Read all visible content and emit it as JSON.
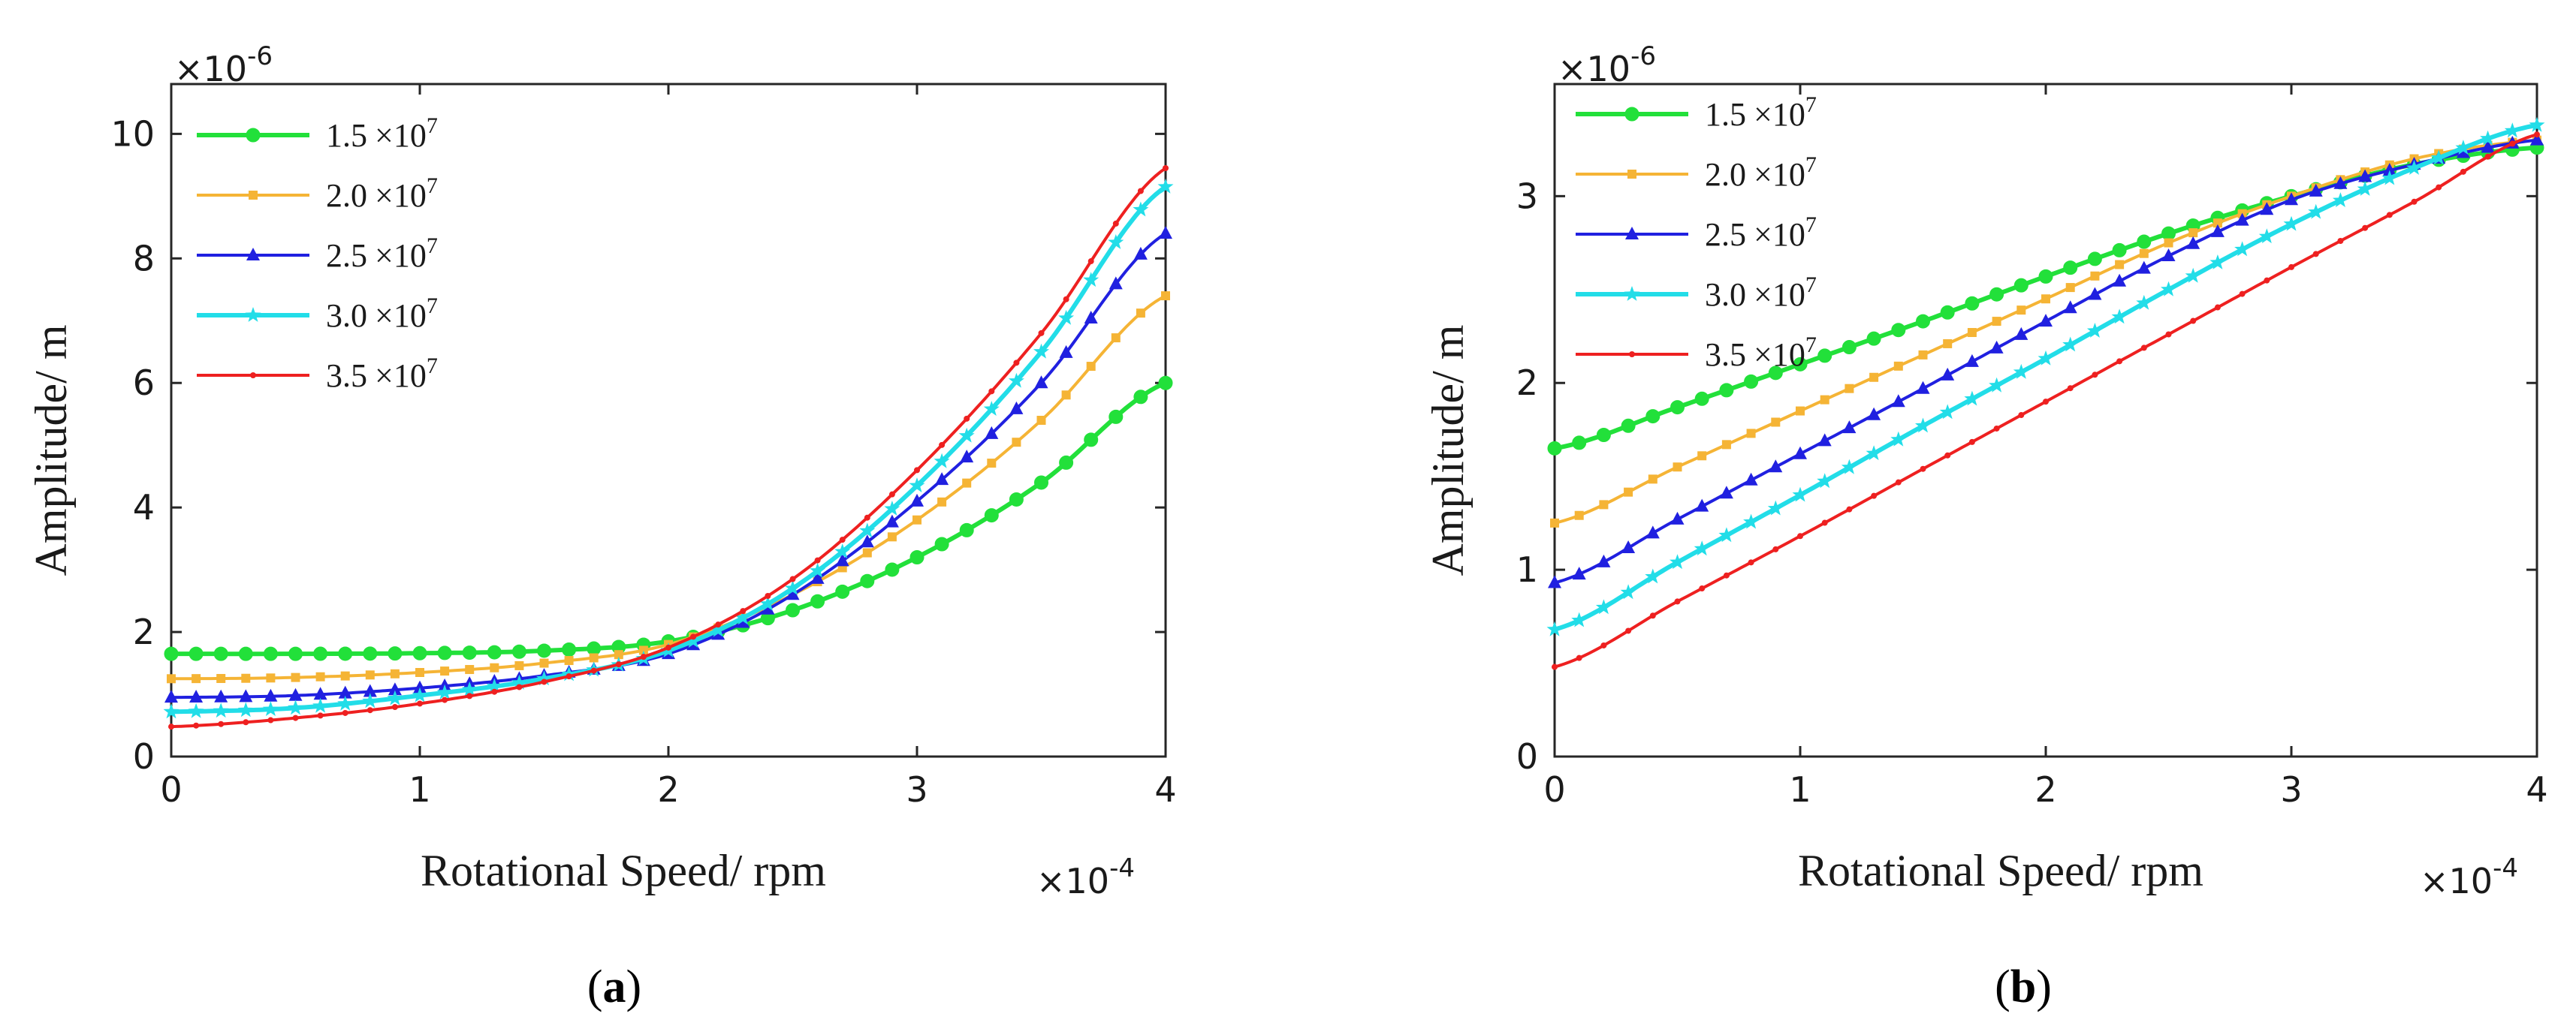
{
  "chart_data": [
    {
      "type": "line",
      "panel": "a",
      "caption_open": "(",
      "caption_letter": "a",
      "caption_close": ")",
      "xlabel": "Rotational Speed/ rpm",
      "ylabel": "Amplitude/ m",
      "x_multiplier": "×10",
      "x_exponent": "-4",
      "y_multiplier": "×10",
      "y_exponent": "-6",
      "xlim": [
        0,
        4
      ],
      "ylim": [
        0,
        10.8
      ],
      "xticks": [
        "0",
        "1",
        "2",
        "3",
        "4"
      ],
      "yticks": [
        "0",
        "2",
        "4",
        "6",
        "8",
        "10"
      ],
      "ytick_values": [
        0,
        2,
        4,
        6,
        8,
        10
      ],
      "legend_position": "top-left",
      "x": [
        0,
        0.5,
        1,
        1.5,
        2,
        2.5,
        3,
        3.5,
        4
      ],
      "series": [
        {
          "name_base": "1.5",
          "name_times": "×10",
          "name_exp": "7",
          "color": "#22e03a",
          "marker": "circle",
          "values": [
            1.65,
            1.65,
            1.66,
            1.7,
            1.85,
            2.35,
            3.2,
            4.4,
            6.0
          ]
        },
        {
          "name_base": "2.0",
          "name_times": "×10",
          "name_exp": "7",
          "color": "#f5b435",
          "marker": "square",
          "values": [
            1.25,
            1.27,
            1.35,
            1.5,
            1.8,
            2.6,
            3.8,
            5.4,
            7.4
          ]
        },
        {
          "name_base": "2.5",
          "name_times": "×10",
          "name_exp": "7",
          "color": "#2020e0",
          "marker": "triangle",
          "values": [
            0.95,
            0.98,
            1.1,
            1.3,
            1.65,
            2.6,
            4.1,
            6.0,
            8.4
          ]
        },
        {
          "name_base": "3.0",
          "name_times": "×10",
          "name_exp": "7",
          "color": "#22dde8",
          "marker": "star",
          "values": [
            0.72,
            0.78,
            0.98,
            1.25,
            1.7,
            2.7,
            4.35,
            6.5,
            9.15
          ]
        },
        {
          "name_base": "3.5",
          "name_times": "×10",
          "name_exp": "7",
          "color": "#ee2020",
          "marker": "dot",
          "values": [
            0.48,
            0.62,
            0.85,
            1.2,
            1.75,
            2.85,
            4.6,
            6.8,
            9.45
          ]
        }
      ]
    },
    {
      "type": "line",
      "panel": "b",
      "caption_open": "(",
      "caption_letter": "b",
      "caption_close": ")",
      "xlabel": "Rotational Speed/ rpm",
      "ylabel": "Amplitude/ m",
      "x_multiplier": "×10",
      "x_exponent": "-4",
      "y_multiplier": "×10",
      "y_exponent": "-6",
      "xlim": [
        0,
        4
      ],
      "ylim": [
        0,
        3.6
      ],
      "xticks": [
        "0",
        "1",
        "2",
        "3",
        "4"
      ],
      "yticks": [
        "0",
        "1",
        "2",
        "3"
      ],
      "ytick_values": [
        0,
        1,
        2,
        3
      ],
      "legend_position": "top-left",
      "x": [
        0,
        0.5,
        1,
        1.5,
        2,
        2.5,
        3,
        3.5,
        4
      ],
      "series": [
        {
          "name_base": "1.5",
          "name_times": "×10",
          "name_exp": "7",
          "color": "#22e03a",
          "marker": "circle",
          "values": [
            1.65,
            1.87,
            2.1,
            2.33,
            2.57,
            2.8,
            3.0,
            3.17,
            3.26
          ]
        },
        {
          "name_base": "2.0",
          "name_times": "×10",
          "name_exp": "7",
          "color": "#f5b435",
          "marker": "square",
          "values": [
            1.25,
            1.55,
            1.85,
            2.15,
            2.45,
            2.75,
            3.0,
            3.2,
            3.3
          ]
        },
        {
          "name_base": "2.5",
          "name_times": "×10",
          "name_exp": "7",
          "color": "#2020e0",
          "marker": "triangle",
          "values": [
            0.93,
            1.27,
            1.62,
            1.97,
            2.33,
            2.68,
            2.98,
            3.17,
            3.3
          ]
        },
        {
          "name_base": "3.0",
          "name_times": "×10",
          "name_exp": "7",
          "color": "#22dde8",
          "marker": "star",
          "values": [
            0.68,
            1.04,
            1.4,
            1.77,
            2.13,
            2.5,
            2.85,
            3.15,
            3.38
          ]
        },
        {
          "name_base": "3.5",
          "name_times": "×10",
          "name_exp": "7",
          "color": "#ee2020",
          "marker": "dot",
          "values": [
            0.48,
            0.83,
            1.18,
            1.54,
            1.9,
            2.26,
            2.62,
            2.97,
            3.33
          ]
        }
      ]
    }
  ]
}
